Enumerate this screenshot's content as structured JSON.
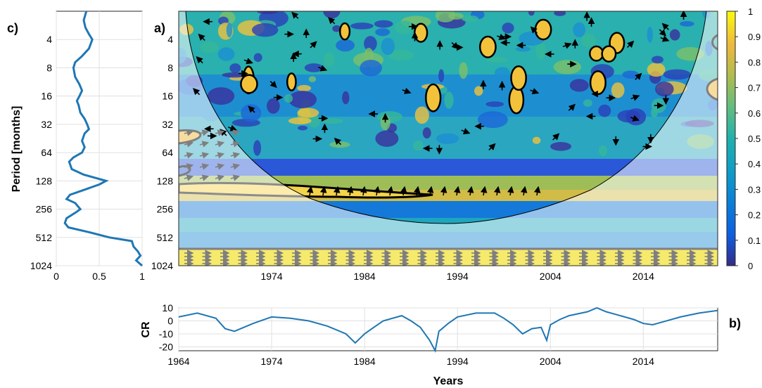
{
  "panel_labels": {
    "a": "a)",
    "b": "b)",
    "c": "c)"
  },
  "axis_labels": {
    "period": "Period [months]",
    "years": "Years",
    "cr": "CR"
  },
  "colors": {
    "line": "#1f77b4",
    "contour": "#000000",
    "coi_contour": "#808080",
    "coi_shade": "#ffffff"
  },
  "chart_data": [
    {
      "id": "c",
      "type": "line",
      "orientation": "vertical",
      "xlim": [
        0,
        1
      ],
      "x_ticks": [
        "0",
        "0.5",
        "1"
      ],
      "y_scale": "log2",
      "ylim": [
        2,
        1024
      ],
      "y_ticks": [
        "4",
        "8",
        "16",
        "32",
        "64",
        "128",
        "256",
        "512",
        "1024"
      ],
      "ylabel": "Period [months]",
      "grid": true,
      "series": [
        {
          "periods": [
            2,
            2.5,
            3,
            3.5,
            4,
            5,
            6,
            7,
            8,
            10,
            12,
            14,
            16,
            18,
            20,
            24,
            28,
            32,
            36,
            40,
            48,
            56,
            64,
            72,
            80,
            96,
            110,
            128,
            140,
            160,
            180,
            200,
            220,
            256,
            280,
            320,
            360,
            400,
            450,
            512,
            560,
            640,
            720,
            800,
            900,
            1024
          ],
          "power": [
            0.35,
            0.32,
            0.34,
            0.38,
            0.42,
            0.38,
            0.3,
            0.22,
            0.2,
            0.22,
            0.27,
            0.3,
            0.27,
            0.24,
            0.26,
            0.28,
            0.33,
            0.36,
            0.38,
            0.33,
            0.3,
            0.33,
            0.3,
            0.2,
            0.15,
            0.18,
            0.32,
            0.58,
            0.5,
            0.32,
            0.16,
            0.12,
            0.22,
            0.28,
            0.22,
            0.12,
            0.1,
            0.14,
            0.38,
            0.62,
            0.88,
            0.9,
            0.95,
            0.98,
            0.93,
            1.0
          ]
        }
      ]
    },
    {
      "id": "a",
      "type": "heatmap",
      "title": "",
      "x_scale": "linear",
      "xlim": [
        1964,
        2022
      ],
      "x_ticks": [
        "1974",
        "1984",
        "1994",
        "2004",
        "2014"
      ],
      "y_scale": "log2",
      "ylim": [
        2,
        1024
      ],
      "y_ticks": [
        "4",
        "8",
        "16",
        "32",
        "64",
        "128",
        "256",
        "512",
        "1024"
      ],
      "colorbar": {
        "range": [
          0,
          1
        ],
        "ticks": [
          "0",
          "0.1",
          "0.2",
          "0.3",
          "0.4",
          "0.5",
          "0.6",
          "0.7",
          "0.8",
          "0.9",
          "1"
        ],
        "colormap": "parula"
      },
      "significant_band_period": [
        115,
        140
      ],
      "significant_band_years": [
        1968,
        1991
      ],
      "high_coherence_band_period": [
        600,
        1024
      ],
      "coi_min_period": 256,
      "coi_min_year": 1993,
      "arrows": "phase arrows: right = in-phase, up = leading"
    },
    {
      "id": "b",
      "type": "line",
      "xlim": [
        1964,
        2022
      ],
      "x_ticks": [
        "1964",
        "1974",
        "1984",
        "1994",
        "2004",
        "2014"
      ],
      "ylim": [
        -23,
        10
      ],
      "y_ticks": [
        "10",
        "0",
        "-10",
        "-20"
      ],
      "xlabel": "Years",
      "ylabel": "CR",
      "grid": true,
      "series": [
        {
          "x": [
            1964,
            1966,
            1968,
            1969,
            1970,
            1972,
            1974,
            1976,
            1978,
            1980,
            1982,
            1983,
            1984,
            1985,
            1986,
            1988,
            1989,
            1990,
            1991,
            1991.6,
            1992,
            1993,
            1994,
            1996,
            1998,
            1999,
            2000,
            2001,
            2002,
            2003,
            2003.6,
            2004,
            2005,
            2006,
            2008,
            2009,
            2010,
            2011,
            2012,
            2013,
            2014,
            2015,
            2016,
            2018,
            2020,
            2022
          ],
          "y": [
            3,
            6,
            2,
            -6,
            -8,
            -2,
            3,
            2,
            0,
            -4,
            -10,
            -17,
            -10,
            -5,
            0,
            4,
            0,
            -5,
            -15,
            -23,
            -8,
            -2,
            3,
            6,
            6,
            2,
            -3,
            -10,
            -6,
            -5,
            -15,
            -3,
            1,
            4,
            7,
            10,
            7,
            5,
            3,
            1,
            -2,
            -3,
            -1,
            3,
            6,
            8
          ]
        }
      ]
    }
  ]
}
